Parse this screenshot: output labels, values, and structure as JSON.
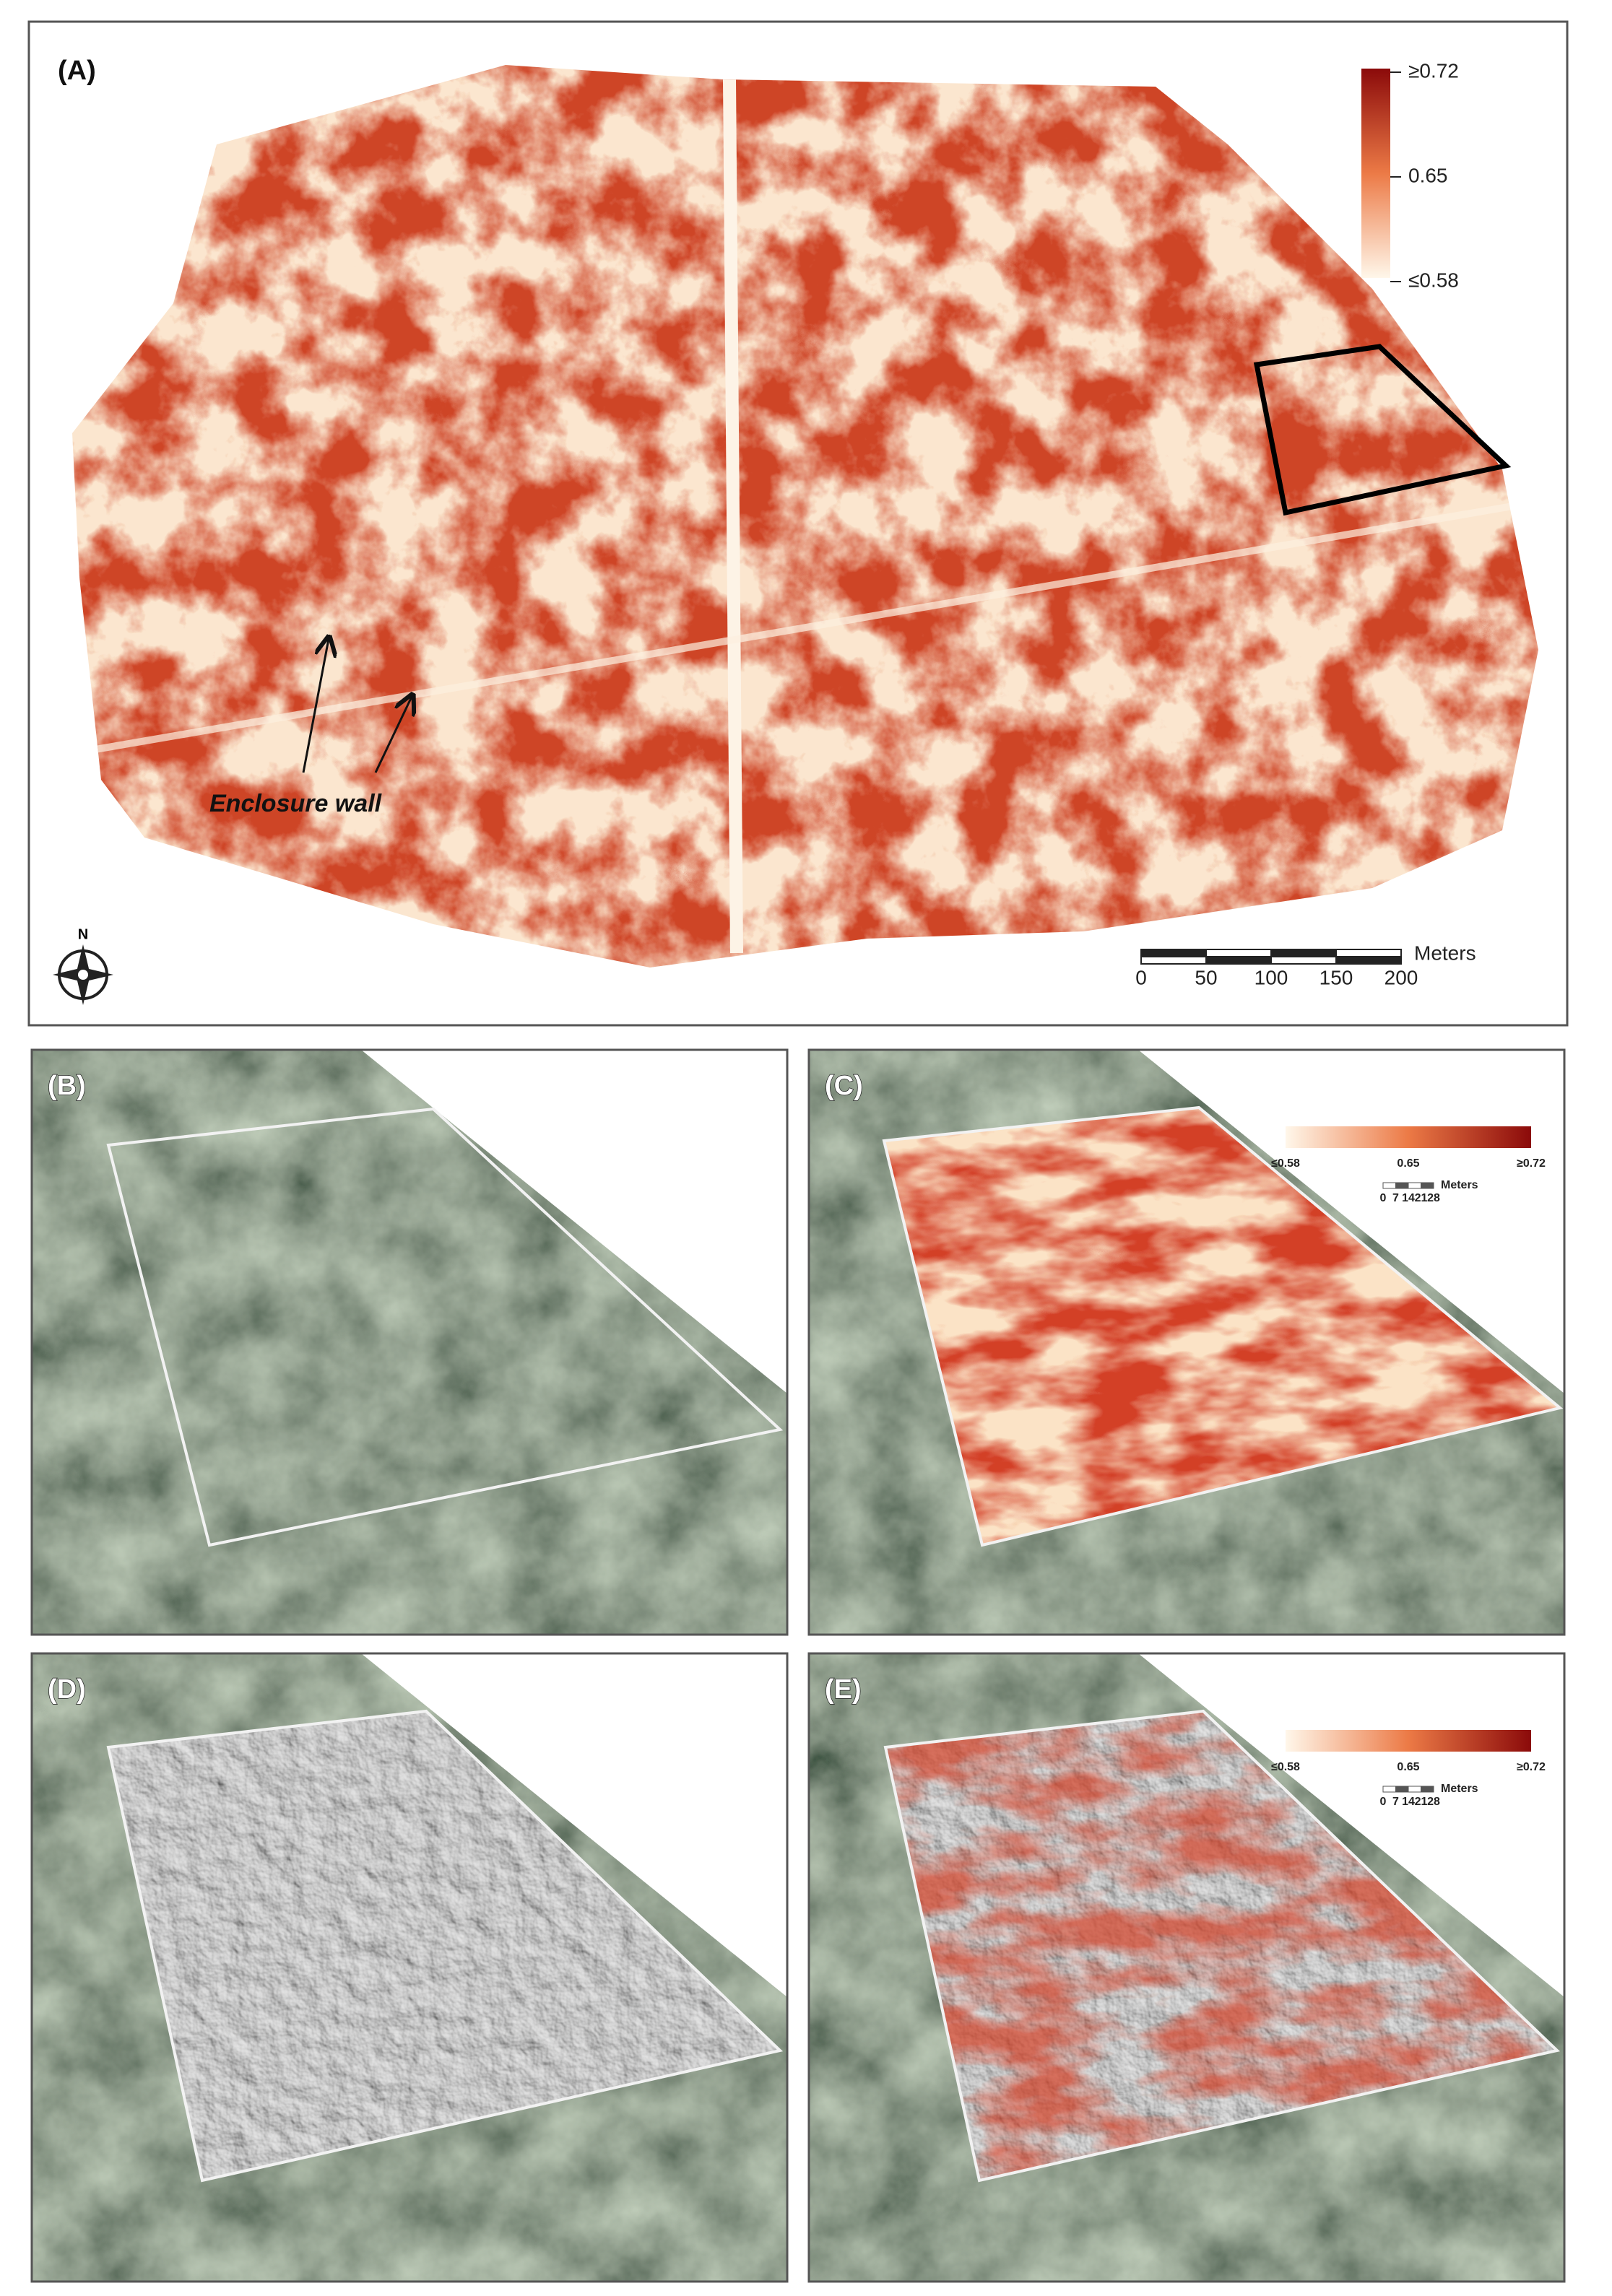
{
  "panels": [
    {
      "label": "(A)",
      "legend": [
        "≥0.72",
        0.65,
        "≤0.58"
      ],
      "annotation": "Enclosure wall",
      "north": "N",
      "scale": {
        "unit": "Meters",
        "ticks": [
          0,
          50,
          100,
          150,
          200
        ]
      }
    },
    {
      "label": "(B)"
    },
    {
      "label": "(C)",
      "legend": [
        "≤0.58",
        0.65,
        "≥0.72"
      ],
      "scale": {
        "unit": "Meters",
        "ticks": [
          0,
          7,
          14,
          21,
          28
        ]
      }
    },
    {
      "label": "(D)"
    },
    {
      "label": "(E)",
      "legend": [
        "≤0.58",
        0.65,
        "≥0.72"
      ],
      "scale": {
        "unit": "Meters",
        "ticks": [
          0,
          7,
          14,
          21,
          28
        ]
      }
    }
  ]
}
